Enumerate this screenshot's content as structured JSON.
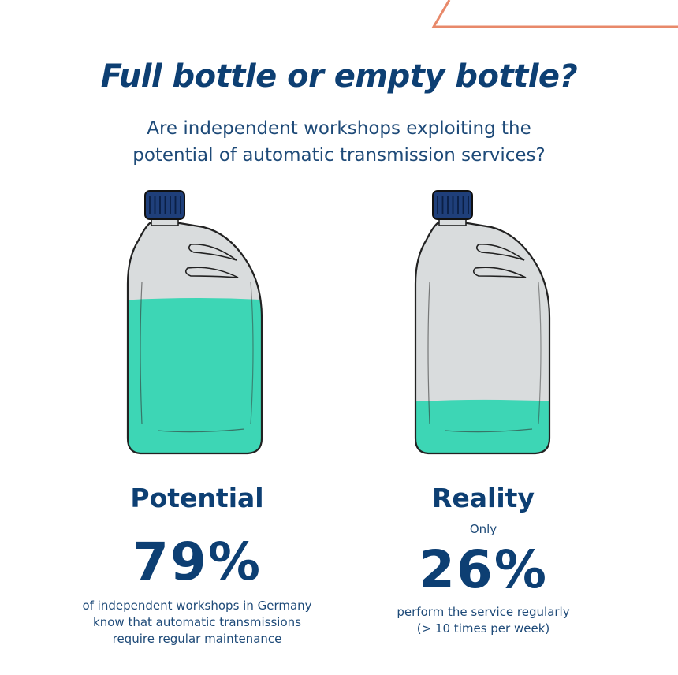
{
  "header": {
    "title": "Full bottle or empty bottle?",
    "subtitle_lines": [
      "Are independent workshops exploiting the",
      "potential of automatic transmission services?"
    ]
  },
  "colors": {
    "navy": "#0d3f73",
    "liquid": "#3dd6b5",
    "bottle_grey": "#d9dcdd",
    "cap": "#1f3f7a",
    "accent_orange": "#e8896a"
  },
  "chart_data": {
    "type": "bar",
    "categories": [
      "Potential",
      "Reality"
    ],
    "values": [
      79,
      26
    ],
    "unit": "%",
    "ylim": [
      0,
      100
    ],
    "title": "Full bottle or empty bottle?",
    "annotations": {
      "reality_prefix": "Only",
      "potential_description": [
        "of independent workshops in Germany",
        "know that automatic transmissions",
        "require regular maintenance"
      ],
      "reality_description": [
        "perform the service regularly",
        "(> 10 times per week)"
      ]
    }
  },
  "labels": {
    "potential_percent": "79%",
    "reality_percent": "26%"
  }
}
